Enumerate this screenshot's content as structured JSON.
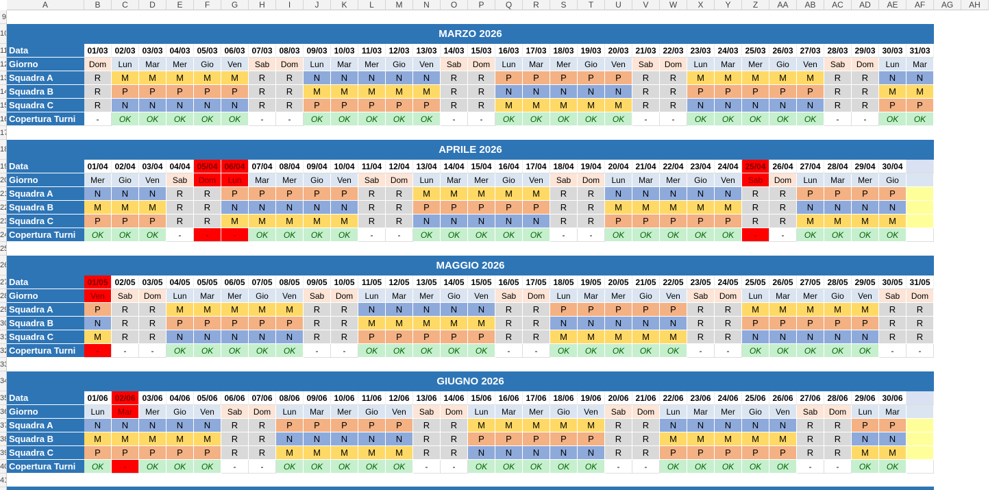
{
  "columns": [
    "A",
    "B",
    "C",
    "D",
    "E",
    "F",
    "G",
    "H",
    "I",
    "J",
    "K",
    "L",
    "M",
    "N",
    "O",
    "P",
    "Q",
    "R",
    "S",
    "T",
    "U",
    "V",
    "W",
    "X",
    "Y",
    "Z",
    "AA",
    "AB",
    "AC",
    "AD",
    "AE",
    "AF",
    "AG",
    "AH"
  ],
  "row_numbers": [
    "9",
    "10",
    "11",
    "12",
    "13",
    "14",
    "15",
    "16",
    "17",
    "18",
    "19",
    "20",
    "21",
    "22",
    "23",
    "24",
    "25",
    "26",
    "27",
    "28",
    "29",
    "30",
    "31",
    "32",
    "33",
    "34",
    "35",
    "36",
    "37",
    "38",
    "39",
    "40",
    "41"
  ],
  "labels": {
    "date": "Data",
    "day": "Giorno",
    "team_a": "Squadra A",
    "team_b": "Squadra B",
    "team_c": "Squadra C",
    "coverage": "Copertura Turni"
  },
  "months": [
    {
      "title": "MARZO 2026",
      "days": 31,
      "start": "Dom",
      "suffix": "/03",
      "a": "RMMMMMRRNNNNNRRPPPPPRRMMMMMRRNN",
      "b": "RPPPPPRRMMMMMRRNNNNNRRPPPPPRRMM",
      "c": "RNNNNNRRPPPPPRRMMMMMRRNNNNNRRPP",
      "red": [],
      "fill_empty": false
    },
    {
      "title": "APRILE 2026",
      "days": 30,
      "start": "Mer",
      "suffix": "/04",
      "a": "NNNRRPPPPPRRMMMMMRRNNNNNRRPPPP",
      "b": "MMMRRNNNNNRRPPPPPRRMMMMMRRNNNN",
      "c": "PPPRRMMMMMRRNNNNNRRPPPPPRRMMMM",
      "red": [
        5,
        6,
        25
      ],
      "fill_empty": true
    },
    {
      "title": "MAGGIO 2026",
      "days": 31,
      "start": "Ven",
      "suffix": "/05",
      "a": "PRRMMMMMRRNNNNNRRPPPPPRRMMMMMRR",
      "b": "NRRPPPPPRRMMMMMRRNNNNNRRPPPPPRR",
      "c": "MRRNNNNNRRPPPPPRRMMMMMRRNNNNNRR",
      "red": [
        1
      ],
      "fill_empty": false
    },
    {
      "title": "GIUGNO 2026",
      "days": 30,
      "start": "Lun",
      "suffix": "/06",
      "a": "NNNNNRRPPPPPRRMMMMMRRNNNNNRRPP",
      "b": "MMMMMRRNNNNNRRPPPPPRRMMMMMRRNN",
      "c": "PPPPPRRMMMMMRRNNNNNRRPPPPPRRMM",
      "red": [
        2
      ],
      "fill_empty": true
    }
  ],
  "weekdays": [
    "Lun",
    "Mar",
    "Mer",
    "Gio",
    "Ven",
    "Sab",
    "Dom"
  ],
  "coverage_ok": "OK",
  "coverage_none": "-",
  "colors": {
    "header": "#2e75b6",
    "morning": "#ffd966",
    "afternoon": "#f4b183",
    "night": "#8eaadb",
    "rest": "#d9d9d9",
    "ok": "#c6efce",
    "alert": "#ff0000",
    "weekend": "#fce4d6"
  }
}
